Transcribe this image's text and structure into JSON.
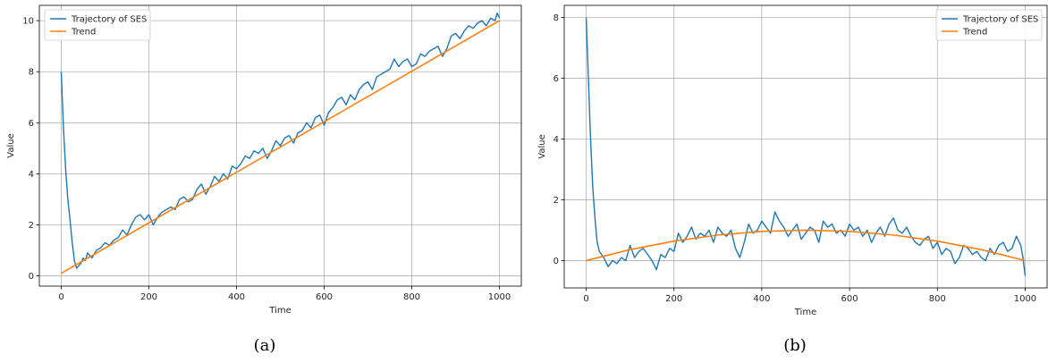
{
  "colors": {
    "trajectory": "#1f77b4",
    "trend": "#ff7f0e",
    "grid": "#b0b0b0"
  },
  "chart_data": [
    {
      "id": "a",
      "type": "line",
      "caption": "(a)",
      "xlabel": "Time",
      "ylabel": "Value",
      "xlim": [
        -50,
        1050
      ],
      "ylim": [
        -0.4,
        10.6
      ],
      "xticks": [
        0,
        200,
        400,
        600,
        800,
        1000
      ],
      "yticks": [
        0,
        2,
        4,
        6,
        8,
        10
      ],
      "grid": true,
      "legend_placement": "top-left",
      "series": [
        {
          "name": "Trajectory of SES",
          "color": "#1f77b4",
          "x": [
            0,
            5,
            10,
            15,
            20,
            25,
            30,
            35,
            40,
            45,
            50,
            55,
            60,
            70,
            80,
            90,
            100,
            110,
            120,
            130,
            140,
            150,
            160,
            170,
            180,
            190,
            200,
            210,
            220,
            230,
            240,
            250,
            260,
            270,
            280,
            290,
            300,
            310,
            320,
            330,
            340,
            350,
            360,
            370,
            380,
            390,
            400,
            410,
            420,
            430,
            440,
            450,
            460,
            470,
            480,
            490,
            500,
            510,
            520,
            530,
            540,
            550,
            560,
            570,
            580,
            590,
            600,
            610,
            620,
            630,
            640,
            650,
            660,
            670,
            680,
            690,
            700,
            710,
            720,
            730,
            740,
            750,
            760,
            770,
            780,
            790,
            800,
            810,
            820,
            830,
            840,
            850,
            860,
            870,
            880,
            890,
            900,
            910,
            920,
            930,
            940,
            950,
            960,
            970,
            980,
            990,
            995,
            1000
          ],
          "y": [
            8.0,
            5.8,
            4.2,
            3.0,
            2.2,
            1.3,
            0.6,
            0.3,
            0.4,
            0.5,
            0.7,
            0.6,
            0.9,
            0.7,
            1.0,
            1.1,
            1.3,
            1.2,
            1.4,
            1.5,
            1.8,
            1.6,
            2.0,
            2.3,
            2.4,
            2.2,
            2.4,
            2.0,
            2.3,
            2.5,
            2.6,
            2.7,
            2.6,
            3.0,
            3.1,
            2.9,
            3.0,
            3.4,
            3.6,
            3.2,
            3.5,
            3.9,
            3.7,
            4.0,
            3.8,
            4.3,
            4.2,
            4.4,
            4.7,
            4.6,
            4.9,
            4.8,
            5.0,
            4.6,
            4.9,
            5.3,
            5.1,
            5.4,
            5.5,
            5.2,
            5.6,
            5.7,
            6.0,
            5.8,
            6.2,
            6.3,
            5.9,
            6.4,
            6.6,
            6.9,
            7.0,
            6.7,
            7.1,
            6.9,
            7.3,
            7.5,
            7.6,
            7.3,
            7.8,
            7.9,
            8.0,
            8.1,
            8.5,
            8.2,
            8.4,
            8.5,
            8.2,
            8.3,
            8.7,
            8.6,
            8.8,
            8.9,
            9.0,
            8.6,
            8.9,
            9.4,
            9.5,
            9.3,
            9.6,
            9.8,
            9.7,
            9.9,
            10.0,
            9.8,
            10.1,
            10.0,
            10.3,
            10.1
          ]
        },
        {
          "name": "Trend",
          "color": "#ff7f0e",
          "x": [
            0,
            1000
          ],
          "y": [
            0.1,
            10.0
          ]
        }
      ]
    },
    {
      "id": "b",
      "type": "line",
      "caption": "(b)",
      "xlabel": "Time",
      "ylabel": "Value",
      "xlim": [
        -50,
        1050
      ],
      "ylim": [
        -0.9,
        8.4
      ],
      "xticks": [
        0,
        200,
        400,
        600,
        800,
        1000
      ],
      "yticks": [
        0,
        2,
        4,
        6,
        8
      ],
      "grid": true,
      "legend_placement": "top-right",
      "series": [
        {
          "name": "Trajectory of SES",
          "color": "#1f77b4",
          "x": [
            0,
            5,
            10,
            15,
            20,
            25,
            30,
            40,
            50,
            60,
            70,
            80,
            90,
            100,
            110,
            120,
            130,
            140,
            150,
            160,
            170,
            180,
            190,
            200,
            210,
            220,
            230,
            240,
            250,
            260,
            270,
            280,
            290,
            300,
            310,
            320,
            330,
            340,
            350,
            360,
            370,
            380,
            390,
            400,
            410,
            420,
            430,
            440,
            450,
            460,
            470,
            480,
            490,
            500,
            510,
            520,
            530,
            540,
            550,
            560,
            570,
            580,
            590,
            600,
            610,
            620,
            630,
            640,
            650,
            660,
            670,
            680,
            690,
            700,
            710,
            720,
            730,
            740,
            750,
            760,
            770,
            780,
            790,
            800,
            810,
            820,
            830,
            840,
            850,
            860,
            870,
            880,
            890,
            900,
            910,
            920,
            930,
            940,
            950,
            960,
            970,
            980,
            990,
            995,
            1000
          ],
          "y": [
            8.0,
            6.0,
            4.0,
            2.4,
            1.4,
            0.6,
            0.3,
            0.1,
            -0.2,
            0.0,
            -0.1,
            0.1,
            0.0,
            0.5,
            0.1,
            0.3,
            0.4,
            0.2,
            0.0,
            -0.3,
            0.2,
            0.1,
            0.4,
            0.3,
            0.9,
            0.6,
            0.8,
            1.1,
            0.7,
            0.9,
            0.8,
            1.0,
            0.6,
            1.1,
            0.9,
            0.8,
            1.0,
            0.4,
            0.1,
            0.6,
            1.2,
            0.9,
            1.0,
            1.3,
            1.1,
            0.9,
            1.6,
            1.3,
            1.1,
            0.8,
            1.0,
            1.2,
            0.7,
            0.9,
            1.1,
            1.0,
            0.6,
            1.3,
            1.1,
            1.2,
            0.9,
            1.0,
            0.8,
            1.2,
            1.0,
            1.1,
            0.8,
            1.0,
            0.6,
            0.9,
            1.1,
            0.8,
            1.2,
            1.4,
            1.0,
            0.9,
            1.1,
            0.8,
            0.6,
            0.5,
            0.7,
            0.8,
            0.4,
            0.6,
            0.2,
            0.4,
            0.3,
            -0.1,
            0.1,
            0.5,
            0.4,
            0.2,
            0.3,
            0.1,
            0.0,
            0.4,
            0.2,
            0.5,
            0.6,
            0.3,
            0.4,
            0.8,
            0.5,
            0.1,
            -0.5
          ]
        },
        {
          "name": "Trend",
          "color": "#ff7f0e",
          "trend_formula": "quadratic",
          "x": [
            0,
            100,
            200,
            300,
            400,
            500,
            600,
            700,
            800,
            900,
            1000
          ],
          "y": [
            0.0,
            0.36,
            0.64,
            0.84,
            0.96,
            1.0,
            0.96,
            0.84,
            0.64,
            0.36,
            0.0
          ]
        }
      ]
    }
  ]
}
